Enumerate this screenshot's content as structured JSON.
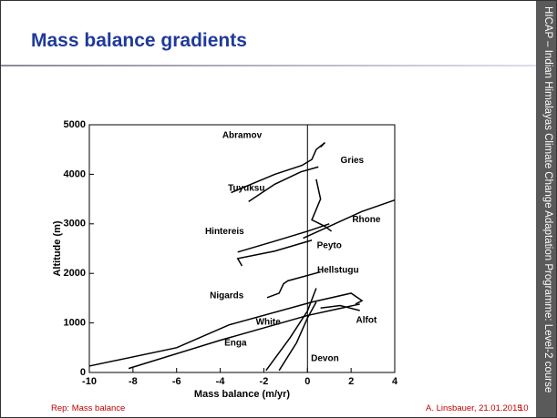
{
  "slide": {
    "title": "Mass balance gradients",
    "side_text": "HICAP – Indian Himalayas Climate Change Adaptation Programme: Level-2 course",
    "footer_left": "Rep: Mass balance",
    "footer_author": "A. Linsbauer, 21.01.2015",
    "page_number": "10"
  },
  "chart_data": {
    "type": "line",
    "xlabel": "Mass balance (m/yr)",
    "ylabel": "Altitude (m)",
    "xlim": [
      -10,
      4
    ],
    "ylim": [
      0,
      5000
    ],
    "xticks": [
      -10,
      -8,
      -6,
      -4,
      -2,
      0,
      2,
      4
    ],
    "yticks": [
      0,
      1000,
      2000,
      3000,
      4000,
      5000
    ],
    "reference_x": 0,
    "color": "#000000",
    "series": [
      {
        "name": "Abramov",
        "label_at": [
          -3,
          4780
        ],
        "x": [
          -3.5,
          -1.5,
          -0.25,
          0.2,
          0.4,
          0.8,
          0.6
        ],
        "values": [
          3630,
          4000,
          4180,
          4300,
          4500,
          4640,
          4550
        ]
      },
      {
        "name": "Tuyuksu",
        "label_at": [
          -2.8,
          3720
        ],
        "x": [
          -2.7,
          -1.5,
          -0.3,
          0.5
        ],
        "values": [
          3450,
          3800,
          4050,
          4150
        ]
      },
      {
        "name": "Gries",
        "label_at": [
          2.05,
          4280
        ],
        "x": [
          0.4,
          0.6,
          0.2,
          0.8,
          1.1
        ],
        "values": [
          3900,
          3500,
          3080,
          2950,
          2850
        ]
      },
      {
        "name": "Rhone",
        "label_at": [
          2.7,
          3080
        ],
        "x": [
          -0.2,
          1,
          2.5,
          4
        ],
        "values": [
          2710,
          2950,
          3250,
          3480
        ]
      },
      {
        "name": "Hintereis",
        "label_at": [
          -3.8,
          2840
        ],
        "x": [
          -3.2,
          -1.5,
          0,
          1
        ],
        "values": [
          2430,
          2650,
          2850,
          3000
        ]
      },
      {
        "name": "Peyto",
        "label_at": [
          1,
          2560
        ],
        "x": [
          -3,
          -3.2,
          -1.5,
          0.2
        ],
        "values": [
          2150,
          2300,
          2450,
          2670
        ]
      },
      {
        "name": "Hellstugu",
        "label_at": [
          1.4,
          2060
        ],
        "x": [
          -1.85,
          -1.3,
          -1.1,
          -0.9,
          0.6
        ],
        "values": [
          1510,
          1600,
          1790,
          1850,
          2030
        ]
      },
      {
        "name": "Nigards",
        "label_at": [
          -3.7,
          1550
        ],
        "x": [
          -10,
          -6,
          -3.6,
          0.2,
          2,
          2.5,
          2.2
        ],
        "values": [
          130,
          500,
          960,
          1420,
          1600,
          1450,
          1380
        ]
      },
      {
        "name": "Enga",
        "label_at": [
          -3.3,
          590
        ],
        "x": [
          -8.2,
          -4,
          0,
          2.4
        ],
        "values": [
          80,
          650,
          1150,
          1380
        ]
      },
      {
        "name": "White",
        "label_at": [
          -1.8,
          1010
        ],
        "x": [
          -1.9,
          -0.8,
          0,
          0.4
        ],
        "values": [
          40,
          700,
          1240,
          1700
        ]
      },
      {
        "name": "Devon",
        "label_at": [
          0.8,
          280
        ],
        "x": [
          -1.3,
          -0.5,
          0,
          0.4
        ],
        "values": [
          40,
          600,
          1100,
          1420
        ]
      },
      {
        "name": "Alfot",
        "label_at": [
          2.7,
          1050
        ],
        "x": [
          0.6,
          1.5,
          2.4
        ],
        "values": [
          1300,
          1350,
          1250
        ]
      }
    ]
  }
}
